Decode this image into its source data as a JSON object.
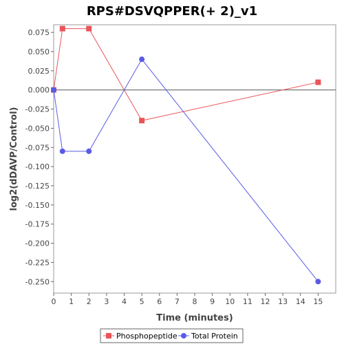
{
  "chart_data": {
    "type": "line",
    "title": "RPS#DSVQPPER(+ 2)_v1",
    "xlabel": "Time (minutes)",
    "ylabel": "log2(dDAVP/Control)",
    "xlim": [
      0,
      16
    ],
    "ylim": [
      -0.265,
      0.085
    ],
    "x_ticks": [
      0,
      1,
      2,
      3,
      4,
      5,
      6,
      7,
      8,
      9,
      10,
      11,
      12,
      13,
      14,
      15
    ],
    "y_ticks": [
      0.075,
      0.05,
      0.025,
      0.0,
      -0.025,
      -0.05,
      -0.075,
      -0.1,
      -0.125,
      -0.15,
      -0.175,
      -0.2,
      -0.225,
      -0.25
    ],
    "y_tick_labels": [
      "0.075",
      "0.050",
      "0.025",
      "0.000",
      "-0.025",
      "-0.050",
      "-0.075",
      "-0.100",
      "-0.125",
      "-0.150",
      "-0.175",
      "-0.200",
      "-0.225",
      "-0.250"
    ],
    "zero_line": true,
    "grid": false,
    "legend_position": "bottom",
    "series": [
      {
        "name": "Phosphopeptide",
        "color": "#e8555a",
        "marker": "square",
        "x": [
          0,
          0.5,
          2,
          5,
          15
        ],
        "values": [
          0.0,
          0.08,
          0.08,
          -0.04,
          0.01
        ]
      },
      {
        "name": "Total Protein",
        "color": "#5a5ae6",
        "marker": "circle",
        "x": [
          0,
          0.5,
          2,
          5,
          15
        ],
        "values": [
          0.0,
          -0.08,
          -0.08,
          0.04,
          -0.25
        ]
      }
    ]
  }
}
